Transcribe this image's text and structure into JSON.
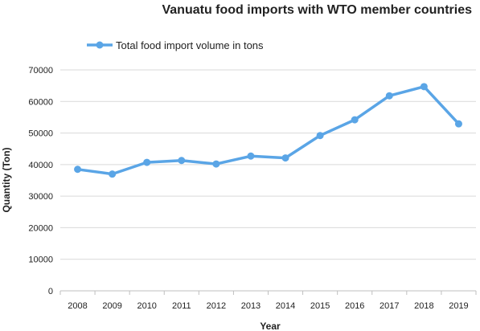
{
  "chart_data": {
    "type": "line",
    "title": "Vanuatu food imports with WTO member countries",
    "xlabel": "Year",
    "ylabel": "Quantity (Ton)",
    "x": [
      "2008",
      "2009",
      "2010",
      "2011",
      "2012",
      "2013",
      "2014",
      "2015",
      "2016",
      "2017",
      "2018",
      "2019"
    ],
    "series": [
      {
        "name": "Total food import volume in tons",
        "color": "#5aa5e6",
        "values": [
          38500,
          37000,
          40700,
          41300,
          40200,
          42700,
          42100,
          49200,
          54200,
          61800,
          64700,
          52900
        ]
      }
    ],
    "ylim": [
      0,
      70000
    ],
    "yticks": [
      "0",
      "10000",
      "20000",
      "30000",
      "40000",
      "50000",
      "60000",
      "70000"
    ],
    "grid": true,
    "legend": "top-left"
  }
}
